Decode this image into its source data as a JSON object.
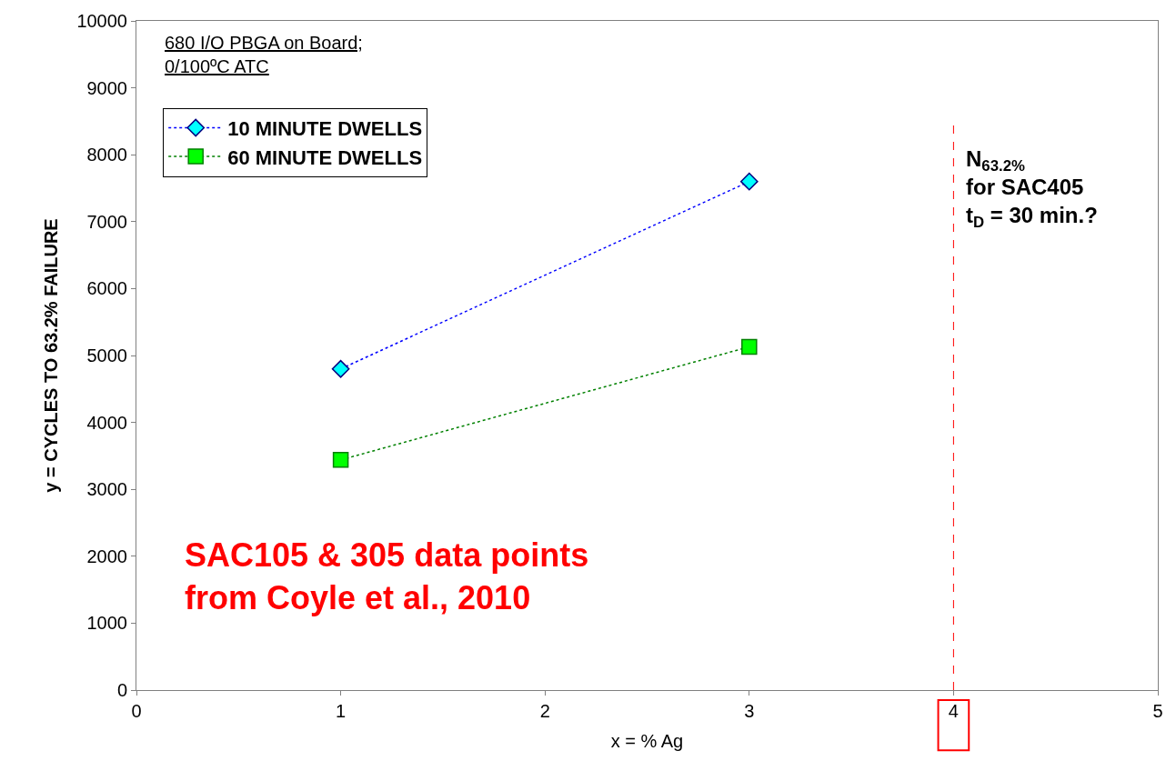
{
  "chart_data": {
    "type": "line",
    "title": "680 I/O PBGA on Board;\n0/100ºC ATC",
    "xlabel": "x = % Ag",
    "ylabel": "y = CYCLES TO 63.2% FAILURE",
    "x": [
      1,
      3
    ],
    "series": [
      {
        "name": "10 MINUTE DWELLS",
        "color": "#0000ff",
        "marker": "diamond",
        "values": [
          4800,
          7600
        ]
      },
      {
        "name": "60 MINUTE DWELLS",
        "color": "#008000",
        "marker": "square",
        "values": [
          3440,
          5130
        ]
      }
    ],
    "line_style": "dotted",
    "xlim": [
      0,
      5
    ],
    "xticks": [
      0,
      1,
      2,
      3,
      4,
      5
    ],
    "ylim": [
      0,
      10000
    ],
    "yticks": [
      0,
      1000,
      2000,
      3000,
      4000,
      5000,
      6000,
      7000,
      8000,
      9000,
      10000
    ],
    "ref_lines": [
      {
        "axis": "x",
        "value": 4,
        "color": "#ff0000",
        "line_style": "dashed"
      }
    ],
    "annotations": [
      "SAC105 & 305 data points\nfrom Coyle et al., 2010",
      "N$_{63.2%}$\nfor SAC405\nt$_{D}$ = 30 min.?"
    ],
    "legend": "top left"
  }
}
